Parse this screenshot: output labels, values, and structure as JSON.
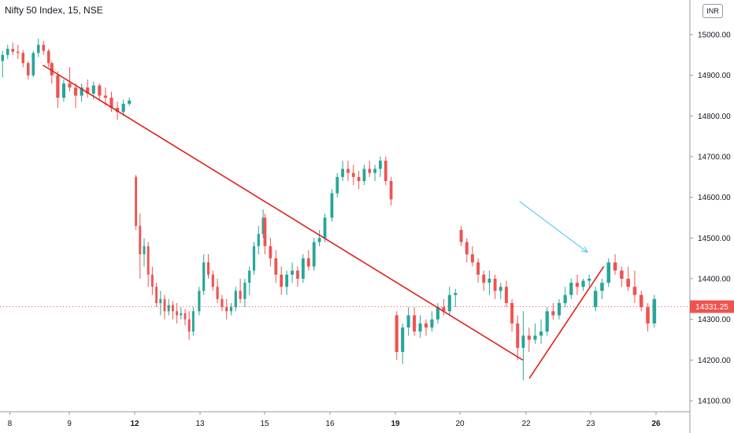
{
  "header": {
    "title": "Nifty 50 Index, 15, NSE",
    "currency": "INR"
  },
  "chart_data": {
    "type": "candlestick",
    "ylim": [
      14080,
      15060
    ],
    "y_ticks": [
      14100,
      14200,
      14300,
      14400,
      14500,
      14600,
      14700,
      14800,
      14900,
      15000
    ],
    "y_tick_labels": [
      "14100.00",
      "14200.00",
      "14300.00",
      "14400.00",
      "14500.00",
      "14600.00",
      "14700.00",
      "14800.00",
      "14900.00",
      "15000.00"
    ],
    "x_labels": [
      {
        "label": "8",
        "x": 0.1,
        "bold": false
      },
      {
        "label": "9",
        "x": 1,
        "bold": false
      },
      {
        "label": "12",
        "x": 2,
        "bold": true
      },
      {
        "label": "13",
        "x": 3,
        "bold": false
      },
      {
        "label": "15",
        "x": 4,
        "bold": false
      },
      {
        "label": "16",
        "x": 5,
        "bold": false
      },
      {
        "label": "19",
        "x": 6,
        "bold": true
      },
      {
        "label": "20",
        "x": 7,
        "bold": false
      },
      {
        "label": "22",
        "x": 8,
        "bold": false
      },
      {
        "label": "23",
        "x": 9,
        "bold": false
      },
      {
        "label": "26",
        "x": 10,
        "bold": true
      }
    ],
    "last_price": 14331.25,
    "last_price_label": "14331.25",
    "colors": {
      "up": "#26a69a",
      "down": "#ef5350",
      "trendline": "#e0201a",
      "arrow": "#4fc3f7",
      "last_price_line": "#ef5350"
    },
    "sessions": [
      [
        14935,
        14960,
        14895,
        14950,
        14950,
        14975,
        14940,
        14965,
        14965,
        14980,
        14950,
        14958,
        14958,
        14975,
        14940,
        14955,
        14955,
        14962,
        14920,
        14930,
        14930,
        14935,
        14890,
        14900,
        14900,
        14960,
        14895,
        14955,
        14955,
        14990,
        14945,
        14975,
        14975,
        14985,
        14950,
        14960,
        14960,
        14965,
        14920,
        14930
      ],
      [
        14930,
        14935,
        14880,
        14900,
        14900,
        14910,
        14820,
        14845,
        14845,
        14890,
        14835,
        14880,
        14880,
        14920,
        14860,
        14870,
        14870,
        14880,
        14820,
        14850,
        14850,
        14880,
        14835,
        14870,
        14870,
        14890,
        14845,
        14855,
        14855,
        14885,
        14840,
        14875,
        14875,
        14880,
        14840,
        14850,
        14850,
        14870,
        14825,
        14845,
        14845,
        14860,
        14810,
        14820,
        14820,
        14835,
        14790,
        14810,
        14810,
        14840,
        14800,
        14830,
        14830,
        14845,
        14825,
        14838
      ],
      [
        14650,
        14655,
        14520,
        14530,
        14530,
        14560,
        14400,
        14460,
        14460,
        14500,
        14430,
        14480,
        14480,
        14490,
        14380,
        14410,
        14410,
        14430,
        14360,
        14380,
        14380,
        14390,
        14330,
        14340,
        14340,
        14370,
        14310,
        14350,
        14350,
        14360,
        14300,
        14320,
        14320,
        14350,
        14310,
        14335,
        14335,
        14345,
        14300,
        14320,
        14320,
        14340,
        14290,
        14310,
        14310,
        14330,
        14300,
        14315,
        14315,
        14325,
        14285,
        14300,
        14300,
        14320,
        14250,
        14270,
        14270,
        14330,
        14260,
        14320
      ],
      [
        14320,
        14380,
        14310,
        14370,
        14370,
        14460,
        14360,
        14440,
        14440,
        14460,
        14400,
        14410,
        14410,
        14420,
        14370,
        14380,
        14380,
        14400,
        14340,
        14350,
        14350,
        14360,
        14320,
        14330,
        14330,
        14350,
        14300,
        14320,
        14320,
        14340,
        14310,
        14330,
        14330,
        14380,
        14320,
        14370,
        14370,
        14400,
        14340,
        14350,
        14350,
        14400,
        14330,
        14390,
        14390,
        14430,
        14360,
        14420,
        14420,
        14490,
        14410,
        14480,
        14480,
        14530,
        14460,
        14510,
        14510,
        14570,
        14500,
        14550
      ],
      [
        14550,
        14560,
        14460,
        14480,
        14480,
        14500,
        14430,
        14450,
        14450,
        14470,
        14390,
        14410,
        14410,
        14430,
        14360,
        14380,
        14380,
        14420,
        14360,
        14410,
        14410,
        14440,
        14390,
        14420,
        14420,
        14430,
        14380,
        14400,
        14400,
        14460,
        14390,
        14450,
        14450,
        14470,
        14420,
        14430,
        14430,
        14500,
        14420,
        14490,
        14490,
        14520,
        14480,
        14500,
        14500,
        14560,
        14490,
        14550
      ],
      [
        14550,
        14620,
        14540,
        14610,
        14610,
        14660,
        14600,
        14650,
        14650,
        14690,
        14640,
        14670,
        14670,
        14690,
        14640,
        14660,
        14660,
        14680,
        14630,
        14650,
        14650,
        14665,
        14620,
        14640,
        14640,
        14680,
        14630,
        14670,
        14670,
        14690,
        14650,
        14660,
        14660,
        14680,
        14640,
        14670,
        14670,
        14700,
        14650,
        14690,
        14690,
        14700,
        14630,
        14640,
        14640,
        14650,
        14580,
        14595
      ],
      [
        14310,
        14320,
        14200,
        14220,
        14220,
        14290,
        14190,
        14280,
        14280,
        14330,
        14260,
        14310,
        14310,
        14330,
        14260,
        14270,
        14270,
        14310,
        14255,
        14290,
        14290,
        14300,
        14260,
        14280,
        14280,
        14320,
        14270,
        14300,
        14300,
        14340,
        14290,
        14330,
        14330,
        14350,
        14310,
        14320,
        14320,
        14380,
        14310,
        14360,
        14360,
        14375,
        14330,
        14365
      ],
      [
        14520,
        14530,
        14480,
        14490,
        14490,
        14500,
        14440,
        14460,
        14460,
        14480,
        14430,
        14440,
        14440,
        14450,
        14390,
        14410,
        14410,
        14420,
        14370,
        14390,
        14390,
        14420,
        14360,
        14400,
        14400,
        14410,
        14350,
        14370,
        14370,
        14390,
        14350,
        14380,
        14380,
        14395,
        14330,
        14340,
        14340,
        14350,
        14270,
        14290,
        14290,
        14310,
        14200,
        14230,
        14230,
        14320,
        14150,
        14260
      ],
      [
        14260,
        14280,
        14220,
        14250,
        14250,
        14290,
        14240,
        14260,
        14260,
        14300,
        14240,
        14270,
        14270,
        14330,
        14260,
        14320,
        14320,
        14340,
        14300,
        14310,
        14310,
        14350,
        14300,
        14340,
        14340,
        14380,
        14330,
        14360,
        14360,
        14400,
        14350,
        14390,
        14390,
        14410,
        14360,
        14380,
        14380,
        14400,
        14370,
        14395,
        14395,
        14410,
        14380,
        14400
      ],
      [
        14330,
        14380,
        14320,
        14370,
        14370,
        14400,
        14350,
        14390,
        14390,
        14450,
        14380,
        14440,
        14440,
        14460,
        14410,
        14420,
        14420,
        14430,
        14380,
        14400,
        14400,
        14430,
        14370,
        14380,
        14380,
        14420,
        14340,
        14360,
        14360,
        14370,
        14320,
        14330,
        14330,
        14340,
        14270,
        14290,
        14290,
        14360,
        14280,
        14350
      ]
    ],
    "trendlines": [
      {
        "x1": 0.6,
        "y1": 14925,
        "x2": 7.95,
        "y2": 14200
      },
      {
        "x1": 8.05,
        "y1": 14155,
        "x2": 9.2,
        "y2": 14430
      }
    ],
    "arrow": {
      "x1": 7.9,
      "y1": 14590,
      "x2": 8.95,
      "y2": 14465
    }
  }
}
